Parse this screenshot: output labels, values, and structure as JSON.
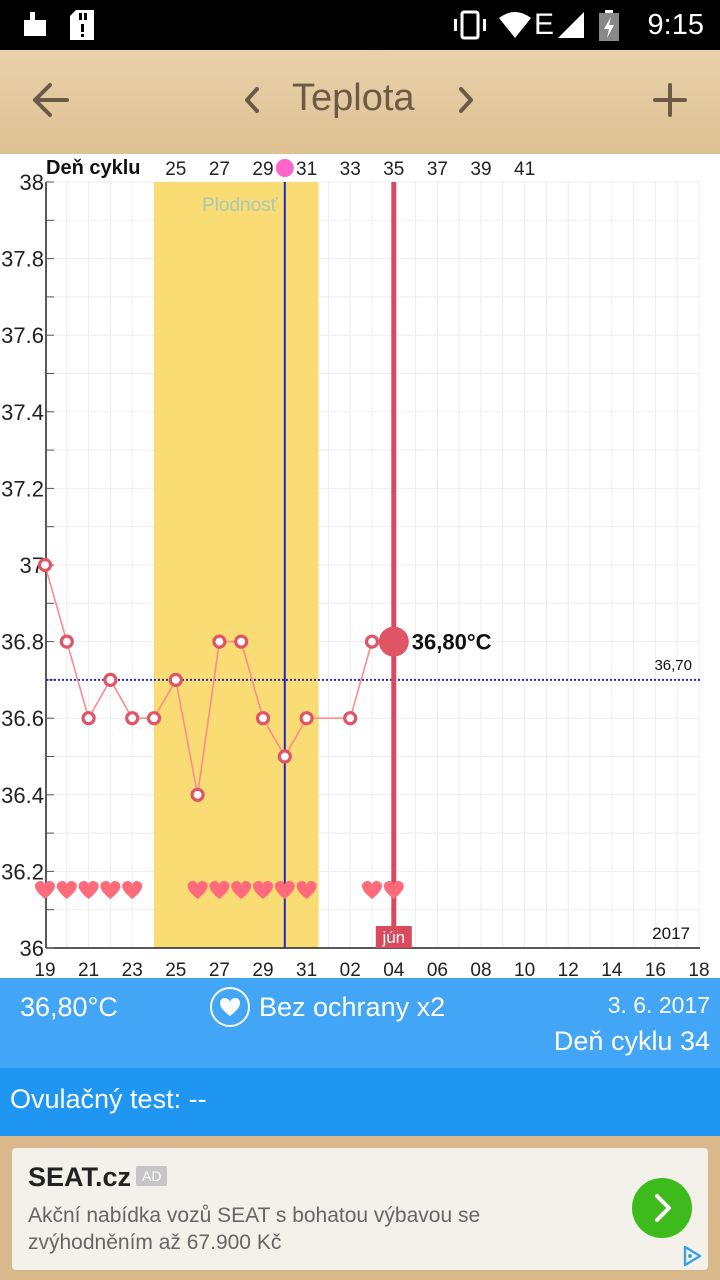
{
  "status_bar": {
    "time": "9:15",
    "network": "E"
  },
  "app_bar": {
    "title": "Teplota"
  },
  "chart_data": {
    "type": "line",
    "title": "",
    "top_axis_label": "Deň cyklu",
    "cycle_day_ticks": [
      "25",
      "27",
      "29",
      "31",
      "33",
      "35",
      "37",
      "39",
      "41"
    ],
    "x_date_ticks": [
      "19",
      "21",
      "23",
      "25",
      "27",
      "29",
      "31",
      "02",
      "04",
      "06",
      "08",
      "10",
      "12",
      "14",
      "16",
      "18"
    ],
    "y_ticks": [
      "38",
      "37.8",
      "37.6",
      "37.4",
      "37.2",
      "37",
      "36.8",
      "36.6",
      "36.4",
      "36.2",
      "36"
    ],
    "ylim": [
      36,
      38
    ],
    "fertile_label": "Plodnosť",
    "fertile_window": [
      "24.5.",
      "31.5."
    ],
    "ovulation": "30.5.",
    "reference_line_label": "36,70",
    "reference_line_value": 36.7,
    "selected_label": "36,80°C",
    "selected": {
      "x": "3.6.",
      "y": 36.8
    },
    "month_label": "jún",
    "year_label": "2017",
    "series": [
      {
        "values": [
          {
            "x": "19.5.",
            "y": 37.0
          },
          {
            "x": "20.5.",
            "y": 36.8
          },
          {
            "x": "21.5.",
            "y": 36.6
          },
          {
            "x": "22.5.",
            "y": 36.7
          },
          {
            "x": "23.5.",
            "y": 36.6
          },
          {
            "x": "24.5.",
            "y": 36.6
          },
          {
            "x": "25.5.",
            "y": 36.7
          },
          {
            "x": "26.5.",
            "y": 36.4
          },
          {
            "x": "27.5.",
            "y": 36.8
          },
          {
            "x": "28.5.",
            "y": 36.8
          },
          {
            "x": "29.5.",
            "y": 36.6
          },
          {
            "x": "30.5.",
            "y": 36.5
          },
          {
            "x": "31.5.",
            "y": 36.6
          },
          {
            "x": "1.6.",
            "y": 36.6
          },
          {
            "x": "2.6.",
            "y": 36.8
          },
          {
            "x": "3.6.",
            "y": 36.8
          }
        ]
      }
    ],
    "intercourse_days": [
      "19.5.",
      "20.5.",
      "21.5.",
      "22.5.",
      "23.5.",
      "26.5.",
      "27.5.",
      "28.5.",
      "29.5.",
      "30.5.",
      "31.5.",
      "2.6.",
      "3.6."
    ]
  },
  "info": {
    "temperature": "36,80°C",
    "intercourse": "Bez ochrany x2",
    "date": "3. 6. 2017",
    "cycle_day": "Deň cyklu 34"
  },
  "ovulation_test": {
    "label": "Ovulačný test: --"
  },
  "ad": {
    "brand": "SEAT.cz",
    "tag": "AD",
    "text": "Akční nabídka vozů SEAT s bohatou výbavou se zvýhodněním až 67.900 Kč"
  },
  "colors": {
    "accent": "#42a5f5",
    "dark_accent": "#1e96f2",
    "temp_line": "#ff8b8b",
    "marker": "#e05565",
    "fertile": "#f9dc74",
    "ovulation_line": "#1e2bb8"
  }
}
